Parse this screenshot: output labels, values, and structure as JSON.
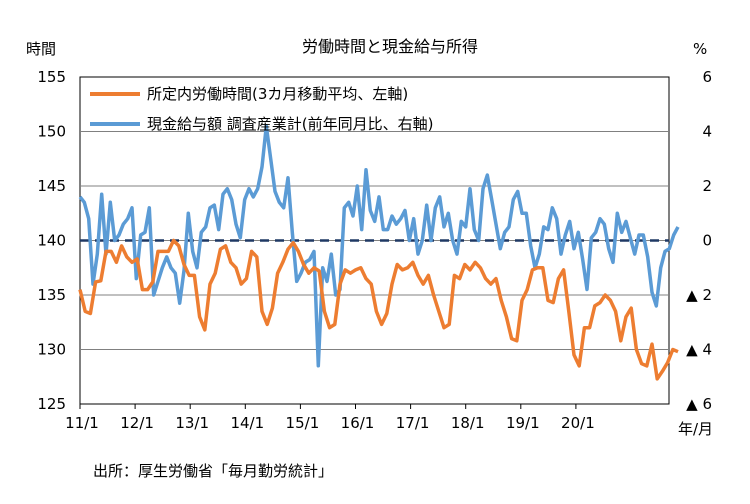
{
  "chart_data": {
    "type": "line",
    "title": "労働時間と現金給与所得",
    "y_left_label": "時間",
    "y_right_label": "%",
    "x_label": "年/月",
    "source": "出所：厚生労働省「毎月勤労統計」",
    "y_left_range": [
      125,
      155
    ],
    "y_left_ticks": [
      "155",
      "150",
      "145",
      "140",
      "135",
      "130",
      "125"
    ],
    "y_right_range": [
      -6,
      6
    ],
    "y_right_ticks": [
      "6",
      "4",
      "2",
      "0",
      "▲ 2",
      "▲ 4",
      "▲ 6"
    ],
    "x_ticks": [
      "11/1",
      "12/1",
      "13/1",
      "14/1",
      "15/1",
      "16/1",
      "17/1",
      "18/1",
      "19/1",
      "20/1"
    ],
    "gridlines": "horizontal",
    "reference_line": {
      "axis": "right",
      "value": 0,
      "style": "dashed"
    },
    "legend": [
      {
        "label": "所定内労働時間(3カ月移動平均、左軸)",
        "color": "#ED7D31"
      },
      {
        "label": "現金給与額 調査産業計(前年同月比、右軸)",
        "color": "#5B9BD5"
      }
    ],
    "series": [
      {
        "name": "所定内労働時間(3カ月移動平均、左軸)",
        "axis": "left",
        "color": "#ED7D31",
        "values": [
          135.5,
          133.5,
          133.3,
          136.2,
          136.3,
          139.0,
          139.0,
          138.0,
          139.5,
          138.5,
          138.0,
          138.3,
          135.5,
          135.5,
          136.2,
          139.0,
          139.0,
          139.0,
          140.0,
          139.5,
          137.8,
          136.8,
          136.8,
          133.0,
          131.8,
          136.0,
          137.0,
          139.2,
          139.5,
          138.0,
          137.5,
          136.0,
          136.5,
          139.0,
          138.5,
          133.5,
          132.3,
          133.8,
          137.0,
          138.0,
          139.2,
          139.8,
          139.0,
          137.8,
          137.0,
          137.5,
          137.2,
          133.5,
          132.0,
          132.3,
          136.0,
          137.3,
          137.0,
          137.3,
          137.5,
          136.5,
          136.0,
          133.5,
          132.3,
          133.3,
          136.0,
          137.8,
          137.3,
          137.5,
          138.0,
          136.8,
          136.0,
          136.8,
          135.0,
          133.5,
          132.0,
          132.3,
          136.8,
          136.5,
          137.8,
          137.3,
          138.0,
          137.5,
          136.5,
          136.0,
          136.5,
          134.5,
          133.0,
          131.0,
          130.8,
          134.5,
          135.5,
          137.3,
          137.5,
          137.5,
          134.5,
          134.3,
          136.5,
          137.3,
          133.5,
          129.5,
          128.5,
          132.0,
          132.0,
          134.0,
          134.3,
          135.0,
          134.5,
          133.5,
          130.8,
          133.0,
          133.8,
          130.0,
          128.7,
          128.5,
          130.5,
          127.3,
          128.0,
          128.8,
          130.0,
          129.8
        ]
      },
      {
        "name": "現金給与額 調査産業計(前年同月比、右軸)",
        "axis": "right",
        "color": "#5B9BD5",
        "values": [
          1.6,
          1.4,
          0.8,
          -1.6,
          -0.5,
          1.7,
          -0.5,
          1.4,
          0.0,
          0.2,
          0.6,
          0.8,
          1.2,
          -1.4,
          0.2,
          0.3,
          1.2,
          -2.0,
          -1.5,
          -1.0,
          -0.6,
          -1.0,
          -1.2,
          -2.3,
          -1.1,
          1.0,
          -0.4,
          -1.0,
          0.3,
          0.5,
          1.2,
          1.3,
          0.4,
          1.7,
          1.9,
          1.5,
          0.6,
          0.1,
          1.5,
          1.9,
          1.6,
          1.9,
          2.7,
          4.2,
          3.0,
          1.8,
          1.4,
          1.2,
          2.3,
          0.3,
          -1.5,
          -1.2,
          -0.8,
          -0.7,
          -0.4,
          -4.6,
          -1.0,
          -1.5,
          -0.5,
          -2.0,
          -1.8,
          1.2,
          1.4,
          0.9,
          2.0,
          0.4,
          2.6,
          1.1,
          0.7,
          1.6,
          0.4,
          0.4,
          0.9,
          0.6,
          0.8,
          1.1,
          0.0,
          0.8,
          -0.5,
          0.0,
          1.3,
          0.0,
          1.2,
          1.6,
          0.5,
          1.0,
          0.0,
          -0.5,
          0.7,
          0.5,
          1.9,
          0.4,
          0.0,
          1.9,
          2.4,
          1.5,
          0.6,
          -0.3,
          0.3,
          0.5,
          1.5,
          1.8,
          1.0,
          1.0,
          -0.2,
          -1.0,
          -0.5,
          0.5,
          0.4,
          1.2,
          0.8,
          -0.5,
          0.2,
          0.7,
          -0.3,
          0.3,
          -0.7,
          -1.8,
          0.1,
          0.3,
          0.8,
          0.6,
          -0.3,
          -0.8,
          1.0,
          0.3,
          0.7,
          0.1,
          -0.5,
          0.2,
          0.2,
          -0.6,
          -1.9,
          -2.4,
          -1.0,
          -0.4,
          -0.3,
          0.2,
          0.5
        ]
      }
    ]
  }
}
